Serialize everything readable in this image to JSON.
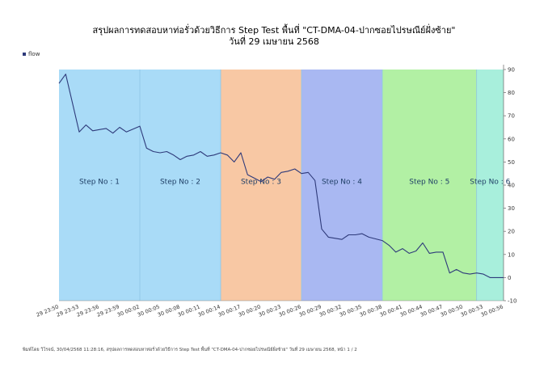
{
  "title_line1": "สรุปผลการทดสอบหาท่อรั่วด้วยวิธีการ Step Test พื้นที่ \"CT-DMA-04-ปากซอยไปรษณีย์ฝั่งซ้าย\"",
  "title_line2": "วันที่ 29 เมษายน 2568",
  "footer": "พิมพ์โดย วิโรจน์, 30/04/2568 11:28:16, สรุปผลการทดสอบหาท่อรั่วด้วยวิธีการ Step Test พื้นที่ \"CT-DMA-04-ปากซอยไปรษณีย์ฝั่งซ้าย\" วันที่ 29 เมษายน 2568, หน้า 1 / 2",
  "chart_data": {
    "type": "line",
    "title": "สรุปผลการทดสอบหาท่อรั่วด้วยวิธีการ Step Test พื้นที่ \"CT-DMA-04-ปากซอยไปรษณีย์ฝั่งซ้าย\" วันที่ 29 เมษายน 2568",
    "xlabel": "",
    "ylabel": "",
    "ylim": [
      -10,
      90
    ],
    "yticks": [
      -10,
      0,
      10,
      20,
      30,
      40,
      50,
      60,
      70,
      80,
      90
    ],
    "grid": false,
    "legend_position": "top-left",
    "x_tick_labels": [
      "29 23:50",
      "29 23:53",
      "29 23:56",
      "29 23:59",
      "30 00:02",
      "30 00:05",
      "30 00:08",
      "30 00:11",
      "30 00:14",
      "30 00:17",
      "30 00:20",
      "30 00:23",
      "30 00:26",
      "30 00:29",
      "30 00:32",
      "30 00:35",
      "30 00:38",
      "30 00:41",
      "30 00:44",
      "30 00:47",
      "30 00:50",
      "30 00:53",
      "30 00:56"
    ],
    "x_start": "29 23:50",
    "x_end": "30 00:56",
    "steps": [
      {
        "label": "Step No : 1",
        "start": "29 23:50",
        "end": "30 00:02",
        "color": "#a9dbf7"
      },
      {
        "label": "Step No : 2",
        "start": "30 00:02",
        "end": "30 00:14",
        "color": "#a9dbf7"
      },
      {
        "label": "Step No : 3",
        "start": "30 00:14",
        "end": "30 00:26",
        "color": "#f8c8a4"
      },
      {
        "label": "Step No : 4",
        "start": "30 00:26",
        "end": "30 00:38",
        "color": "#a9b8f2"
      },
      {
        "label": "Step No : 5",
        "start": "30 00:38",
        "end": "30 00:52",
        "color": "#b2f0a4"
      },
      {
        "label": "Step No : 6",
        "start": "30 00:52",
        "end": "30 00:56",
        "color": "#a8efdc"
      }
    ],
    "series": [
      {
        "name": "flow",
        "color": "#2e3a7a",
        "points": [
          [
            "29 23:50",
            84
          ],
          [
            "29 23:51",
            88
          ],
          [
            "29 23:53",
            63
          ],
          [
            "29 23:54",
            66
          ],
          [
            "29 23:55",
            63.5
          ],
          [
            "29 23:57",
            64.5
          ],
          [
            "29 23:58",
            62.5
          ],
          [
            "29 23:59",
            65
          ],
          [
            "30 00:00",
            63
          ],
          [
            "30 00:02",
            65.5
          ],
          [
            "30 00:03",
            56
          ],
          [
            "30 00:04",
            54.5
          ],
          [
            "30 00:05",
            54
          ],
          [
            "30 00:06",
            54.5
          ],
          [
            "30 00:07",
            53
          ],
          [
            "30 00:08",
            51
          ],
          [
            "30 00:09",
            52.5
          ],
          [
            "30 00:10",
            53
          ],
          [
            "30 00:11",
            54.5
          ],
          [
            "30 00:12",
            52.5
          ],
          [
            "30 00:13",
            53
          ],
          [
            "30 00:14",
            54
          ],
          [
            "30 00:15",
            53
          ],
          [
            "30 00:16",
            50
          ],
          [
            "30 00:17",
            54
          ],
          [
            "30 00:18",
            44.5
          ],
          [
            "30 00:19",
            43
          ],
          [
            "30 00:20",
            41.5
          ],
          [
            "30 00:21",
            43.5
          ],
          [
            "30 00:22",
            42.5
          ],
          [
            "30 00:23",
            45.5
          ],
          [
            "30 00:24",
            46
          ],
          [
            "30 00:25",
            47
          ],
          [
            "30 00:26",
            45
          ],
          [
            "30 00:27",
            45.5
          ],
          [
            "30 00:28",
            42
          ],
          [
            "30 00:29",
            21
          ],
          [
            "30 00:30",
            17.5
          ],
          [
            "30 00:31",
            17
          ],
          [
            "30 00:32",
            16.5
          ],
          [
            "30 00:33",
            18.5
          ],
          [
            "30 00:34",
            18.5
          ],
          [
            "30 00:35",
            19
          ],
          [
            "30 00:36",
            17.5
          ],
          [
            "30 00:38",
            16
          ],
          [
            "30 00:39",
            14
          ],
          [
            "30 00:40",
            11
          ],
          [
            "30 00:41",
            12.5
          ],
          [
            "30 00:42",
            10.5
          ],
          [
            "30 00:43",
            11.5
          ],
          [
            "30 00:44",
            15
          ],
          [
            "30 00:45",
            10.5
          ],
          [
            "30 00:46",
            11
          ],
          [
            "30 00:47",
            11
          ],
          [
            "30 00:48",
            2
          ],
          [
            "30 00:49",
            3.5
          ],
          [
            "30 00:50",
            2
          ],
          [
            "30 00:51",
            1.5
          ],
          [
            "30 00:52",
            2
          ],
          [
            "30 00:53",
            1.5
          ],
          [
            "30 00:54",
            0
          ],
          [
            "30 00:56",
            0
          ]
        ]
      }
    ]
  }
}
